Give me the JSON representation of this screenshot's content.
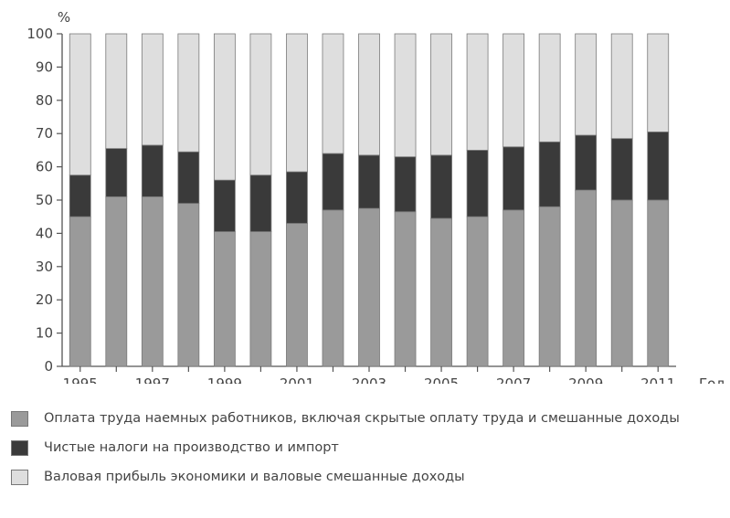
{
  "chart_data": {
    "type": "bar",
    "stacked": true,
    "y_unit": "%",
    "xlabel": "Год",
    "ylim": [
      0,
      100
    ],
    "yticks": [
      0,
      10,
      20,
      30,
      40,
      50,
      60,
      70,
      80,
      90,
      100
    ],
    "categories": [
      "1995",
      "1996",
      "1997",
      "1998",
      "1999",
      "2000",
      "2001",
      "2002",
      "2003",
      "2004",
      "2005",
      "2006",
      "2007",
      "2008",
      "2009",
      "2010",
      "2011"
    ],
    "xtick_labels": [
      "1995",
      "1997",
      "1999",
      "2001",
      "2003",
      "2005",
      "2007",
      "2009",
      "2011"
    ],
    "series": [
      {
        "name": "Оплата труда наемных работников, включая скрытые оплату труда и смешанные доходы",
        "color": "#9a9a9a",
        "values": [
          45,
          51,
          51,
          49,
          40.5,
          40.5,
          43,
          47,
          47.5,
          46.5,
          44.5,
          45,
          47,
          48,
          53,
          50,
          50
        ]
      },
      {
        "name": "Чистые налоги на производство и импорт",
        "color": "#3a3a3a",
        "values": [
          12.5,
          14.5,
          15.5,
          15.5,
          15.5,
          17,
          15.5,
          17,
          16,
          16.5,
          19,
          20,
          19,
          19.5,
          16.5,
          18.5,
          20.5
        ]
      },
      {
        "name": "Валовая прибыль экономики и валовые смешанные доходы",
        "color": "#dedede",
        "values": [
          42.5,
          34.5,
          33.5,
          35.5,
          44,
          42.5,
          41.5,
          36,
          36.5,
          37,
          36.5,
          35,
          34,
          32.5,
          30.5,
          31.5,
          29.5
        ]
      }
    ]
  }
}
